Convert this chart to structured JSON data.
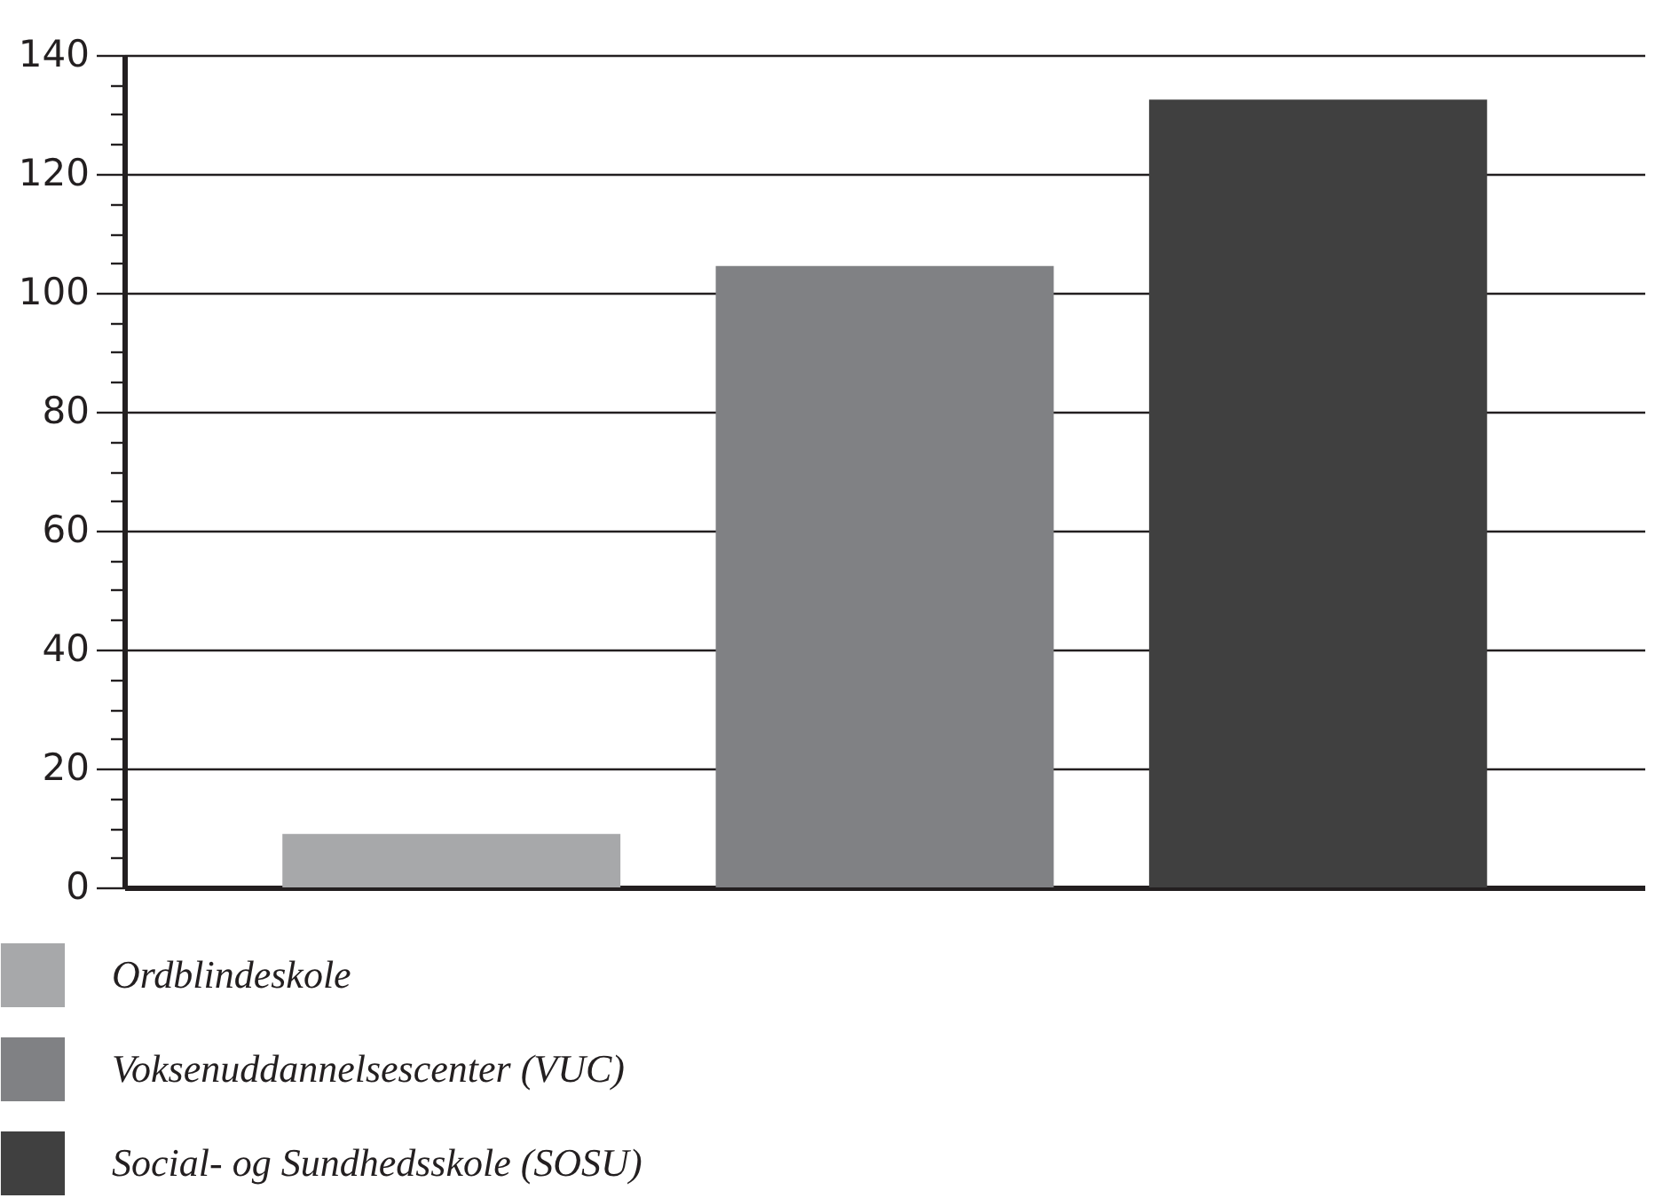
{
  "chart_data": {
    "type": "bar",
    "categories": [
      null,
      null,
      null
    ],
    "series": [
      {
        "name": "Ordblindeskole",
        "color": "#a7a8aa",
        "values": [
          9,
          null,
          null
        ]
      },
      {
        "name": "Voksenuddannelsescenter  (VUC)",
        "color": "#808184",
        "values": [
          null,
          104.5,
          null
        ]
      },
      {
        "name": "Social- og Sundhedsskole (SOSU)",
        "color": "#404040",
        "values": [
          null,
          null,
          132.5
        ]
      }
    ],
    "ylim": [
      0,
      140
    ],
    "yticks": [
      0,
      {
        "value": 5,
        "label": null
      },
      {
        "value": 10,
        "label": null
      },
      {
        "value": 15,
        "label": null
      },
      20,
      {
        "value": 25,
        "label": null
      },
      {
        "value": 30,
        "label": null
      },
      {
        "value": 35,
        "label": null
      },
      40,
      {
        "value": 45,
        "label": null
      },
      {
        "value": 50,
        "label": null
      },
      {
        "value": 55,
        "label": null
      },
      60,
      {
        "value": 65,
        "label": null
      },
      {
        "value": 70,
        "label": null
      },
      {
        "value": 75,
        "label": null
      },
      80,
      {
        "value": 85,
        "label": null
      },
      {
        "value": 90,
        "label": null
      },
      {
        "value": 95,
        "label": null
      },
      100,
      {
        "value": 105,
        "label": null
      },
      {
        "value": 110,
        "label": null
      },
      {
        "value": 115,
        "label": null
      },
      120,
      {
        "value": 125,
        "label": null
      },
      {
        "value": 130,
        "label": null
      },
      {
        "value": 135,
        "label": null
      },
      140
    ],
    "grid": "y",
    "legend": "bottom",
    "tick_labels": "y"
  }
}
